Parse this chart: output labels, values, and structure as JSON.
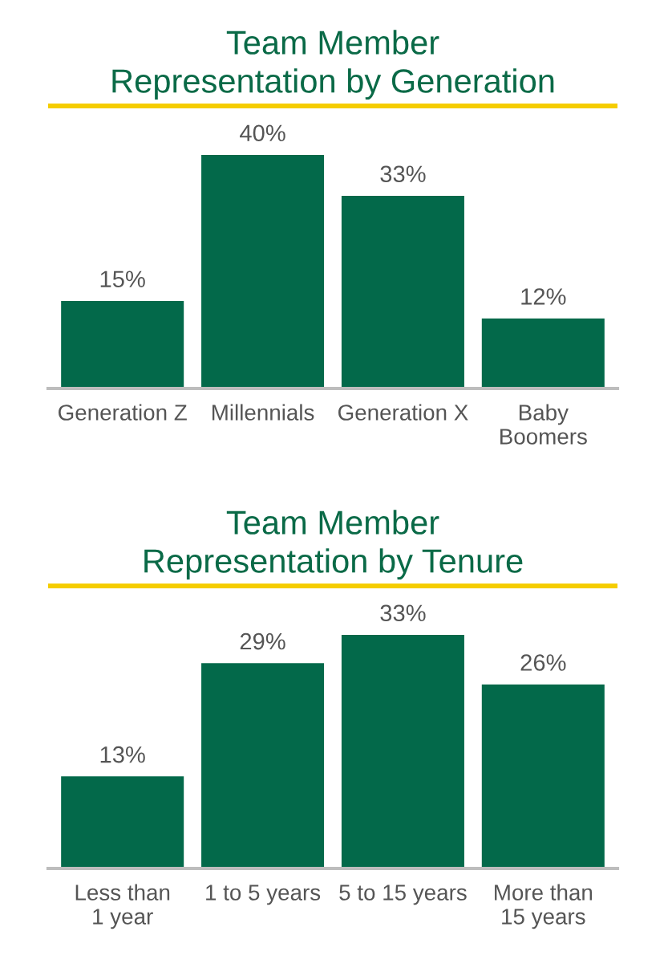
{
  "chart_data": [
    {
      "type": "bar",
      "title": "Team Member\nRepresentation by Generation",
      "categories": [
        "Generation Z",
        "Millennials",
        "Generation X",
        "Baby\nBoomers"
      ],
      "values": [
        15,
        40,
        33,
        12
      ],
      "value_labels": [
        "15%",
        "40%",
        "33%",
        "12%"
      ],
      "color": "#03694a",
      "tick_labels": "x"
    },
    {
      "type": "bar",
      "title": "Team Member\nRepresentation by Tenure",
      "categories": [
        "Less than\n1 year",
        "1 to 5 years",
        "5 to 15 years",
        "More than\n15 years"
      ],
      "values": [
        13,
        29,
        33,
        26
      ],
      "value_labels": [
        "13%",
        "29%",
        "33%",
        "26%"
      ],
      "color": "#03694a",
      "tick_labels": "x"
    }
  ]
}
